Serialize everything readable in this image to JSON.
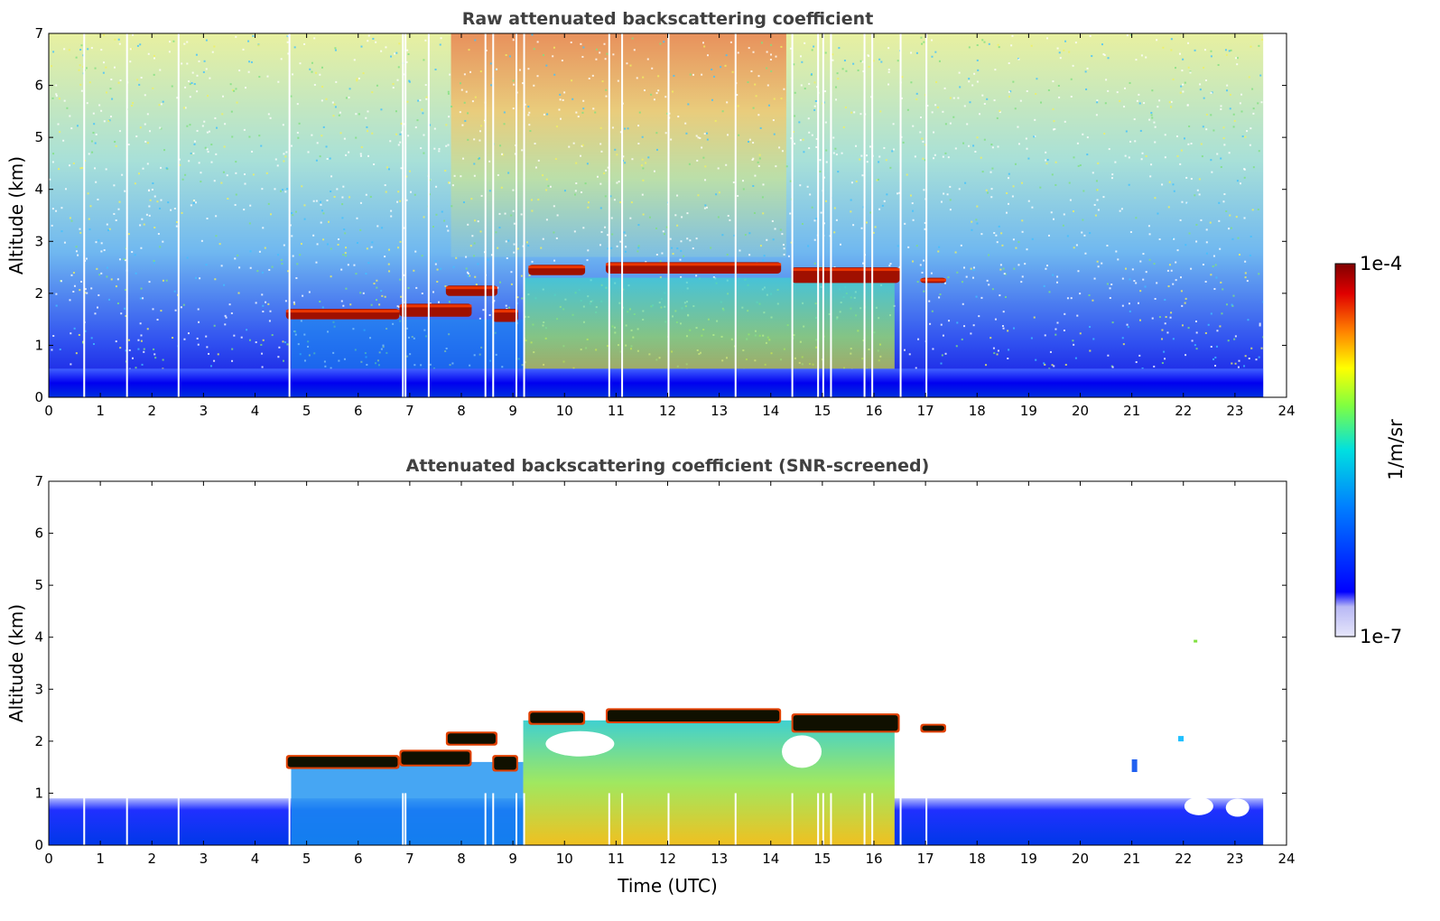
{
  "chart_data": [
    {
      "type": "heatmap",
      "title": "Raw attenuated backscattering coefficient",
      "xlabel": "",
      "ylabel": "Altitude (km)",
      "xlim": [
        0,
        24
      ],
      "ylim": [
        0,
        7
      ],
      "xticks": [
        "0",
        "1",
        "2",
        "3",
        "4",
        "5",
        "6",
        "7",
        "8",
        "9",
        "10",
        "11",
        "12",
        "13",
        "14",
        "15",
        "16",
        "17",
        "18",
        "19",
        "20",
        "21",
        "22",
        "23",
        "24"
      ],
      "yticks": [
        "0",
        "1",
        "2",
        "3",
        "4",
        "5",
        "6",
        "7"
      ],
      "data_end_hour": 23.55,
      "surface_layer_top_km": 0.55,
      "cloud_layers": [
        {
          "start": 4.6,
          "end": 6.8,
          "base_km": 1.5,
          "top_km": 1.7
        },
        {
          "start": 6.8,
          "end": 8.2,
          "base_km": 1.55,
          "top_km": 1.8
        },
        {
          "start": 7.7,
          "end": 8.7,
          "base_km": 1.95,
          "top_km": 2.15
        },
        {
          "start": 8.6,
          "end": 9.1,
          "base_km": 1.45,
          "top_km": 1.7
        },
        {
          "start": 9.3,
          "end": 10.4,
          "base_km": 2.35,
          "top_km": 2.55
        },
        {
          "start": 10.8,
          "end": 14.2,
          "base_km": 2.38,
          "top_km": 2.6
        },
        {
          "start": 14.4,
          "end": 16.5,
          "base_km": 2.2,
          "top_km": 2.5
        },
        {
          "start": 16.9,
          "end": 17.4,
          "base_km": 2.2,
          "top_km": 2.3
        }
      ]
    },
    {
      "type": "heatmap",
      "title": "Attenuated backscattering coefficient (SNR-screened)",
      "xlabel": "Time (UTC)",
      "ylabel": "Altitude (km)",
      "xlim": [
        0,
        24
      ],
      "ylim": [
        0,
        7
      ],
      "xticks": [
        "0",
        "1",
        "2",
        "3",
        "4",
        "5",
        "6",
        "7",
        "8",
        "9",
        "10",
        "11",
        "12",
        "13",
        "14",
        "15",
        "16",
        "17",
        "18",
        "19",
        "20",
        "21",
        "22",
        "23",
        "24"
      ],
      "yticks": [
        "0",
        "1",
        "2",
        "3",
        "4",
        "5",
        "6",
        "7"
      ],
      "data_end_hour": 23.55,
      "boundary_layer_top_km": 0.9
    }
  ],
  "colorbar": {
    "label": "1/m/sr",
    "max_label": "1e-4",
    "min_label": "1e-7",
    "colors": [
      "#e6e6fa",
      "#0000ff",
      "#00bfff",
      "#00ff80",
      "#ffff00",
      "#ff8000",
      "#ff0000",
      "#800000"
    ]
  }
}
